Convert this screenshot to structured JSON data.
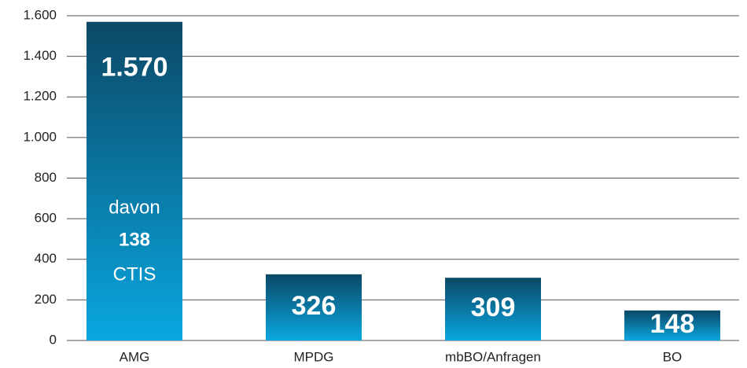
{
  "chart_data": {
    "type": "bar",
    "categories": [
      "AMG",
      "MPDG",
      "mbBO/Anfragen",
      "BO"
    ],
    "values": [
      1570,
      326,
      309,
      148
    ],
    "value_labels": [
      "1.570",
      "326",
      "309",
      "148"
    ],
    "color": [
      "#0b4866",
      "#0aa7e0"
    ],
    "ylim": [
      0,
      1600
    ],
    "yticks": [
      0,
      200,
      400,
      600,
      800,
      {
        "value": 1000,
        "label": "1.000"
      },
      {
        "value": 1200,
        "label": "1.200"
      },
      {
        "value": 1400,
        "label": "1.400"
      },
      {
        "value": 1600,
        "label": "1.600"
      }
    ],
    "grid": true,
    "annotation": {
      "category": 0,
      "lines": [
        "davon",
        "138",
        "CTIS"
      ]
    }
  }
}
